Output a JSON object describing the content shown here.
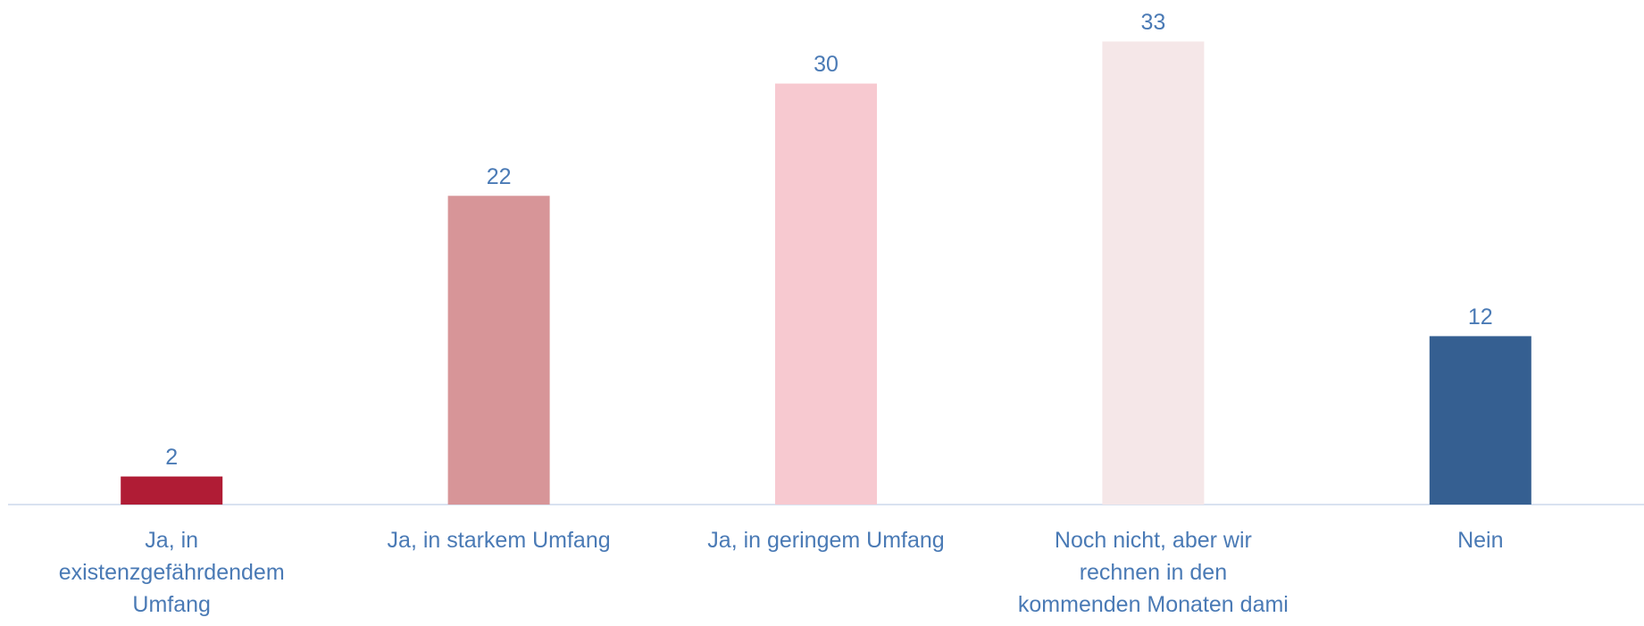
{
  "chart_data": {
    "type": "bar",
    "categories": [
      "Ja, in\nexistenzgefährdendem\nUmfang",
      "Ja, in starkem Umfang",
      "Ja, in geringem Umfang",
      "Noch nicht, aber wir\nrechnen in den\nkommenden Monaten dami",
      "Nein"
    ],
    "values": [
      2,
      22,
      30,
      33,
      12
    ],
    "colors": [
      "#b01c35",
      "#d79598",
      "#f7c9d0",
      "#f5e7e8",
      "#355f91"
    ],
    "ylim": [
      0,
      35
    ]
  }
}
